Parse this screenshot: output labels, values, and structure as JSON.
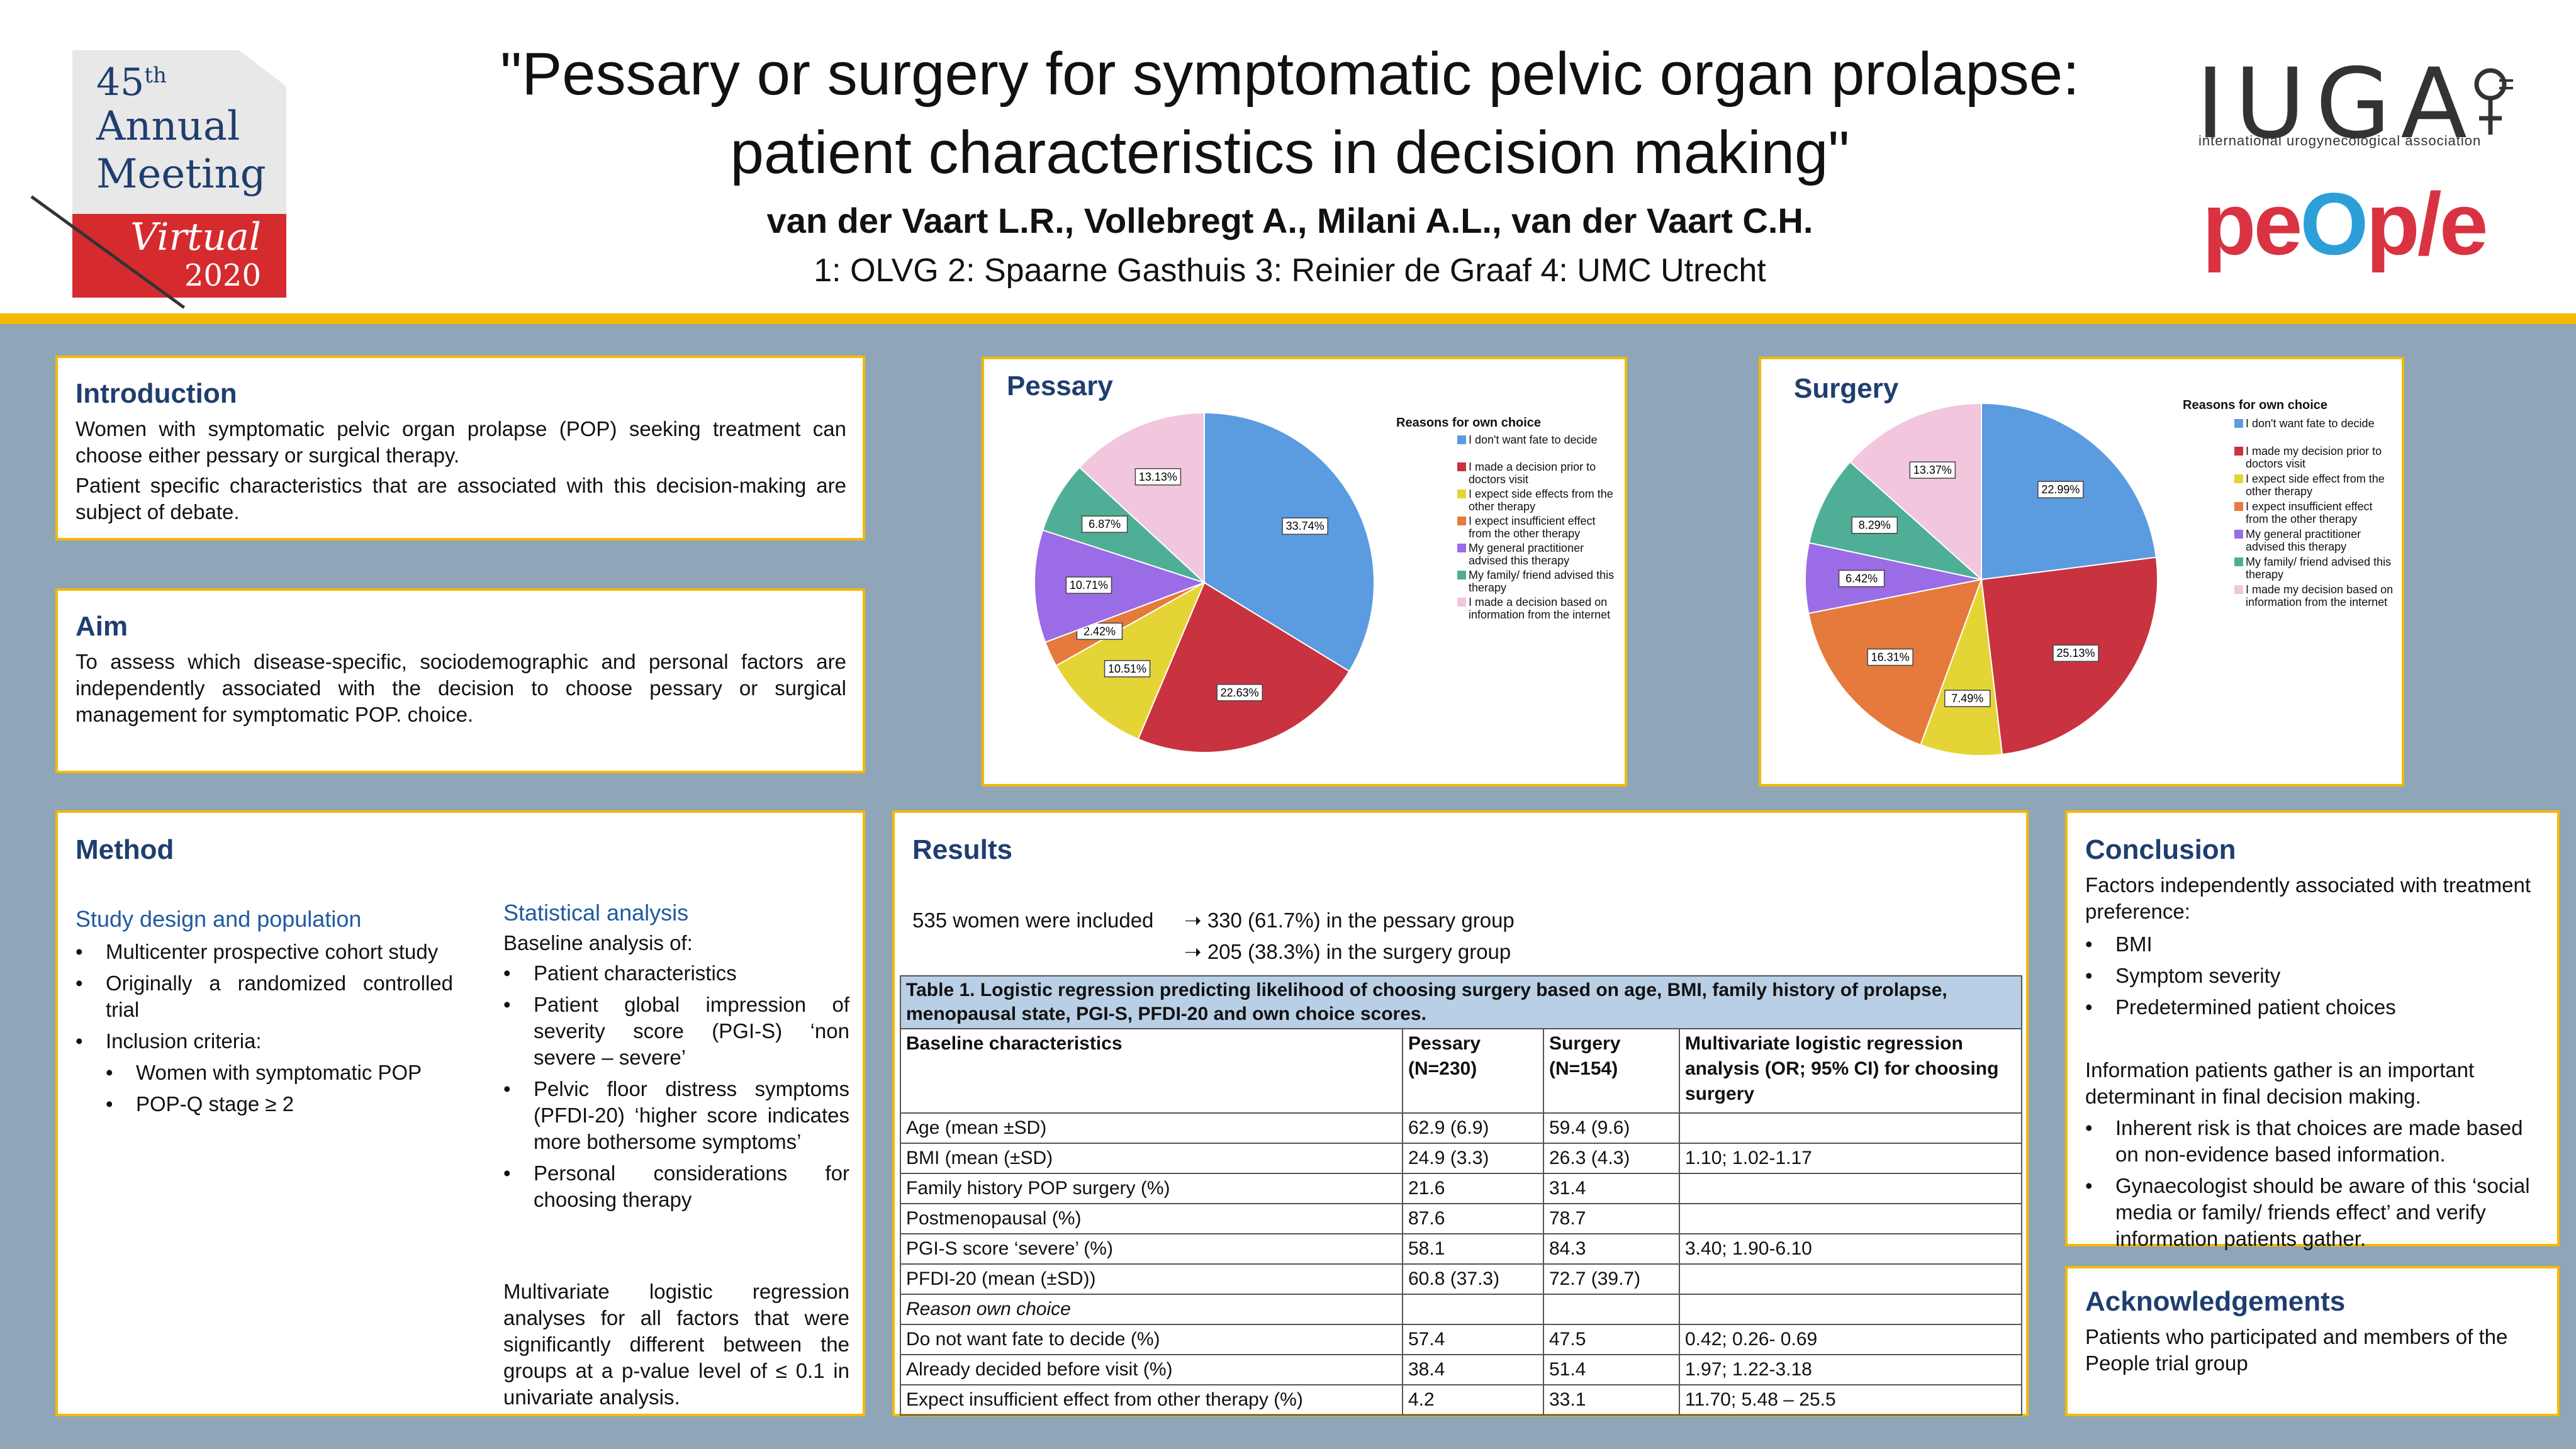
{
  "badge": {
    "number": "45",
    "suffix": "th",
    "line1": "Annual",
    "line2": "Meeting",
    "virtual": "Virtual",
    "year": "2020"
  },
  "header": {
    "title_line1": "\"Pessary or surgery for symptomatic pelvic organ prolapse:",
    "title_line2": "patient characteristics in decision making\"",
    "authors": "van der Vaart L.R., Vollebregt A., Milani A.L., van der Vaart C.H.",
    "affiliations": "1: OLVG 2: Spaarne Gasthuis 3: Reinier de Graaf 4: UMC Utrecht"
  },
  "logos": {
    "iuga": "IUGA",
    "iuga_sub": "international urogynecological association",
    "people_pre": "pe",
    "people_o": "O",
    "people_post": "p/e"
  },
  "introduction": {
    "heading": "Introduction",
    "p1": "Women with symptomatic pelvic organ prolapse (POP) seeking treatment can choose either pessary or surgical therapy.",
    "p2": "Patient specific characteristics that are associated with this decision-making are subject of debate."
  },
  "aim": {
    "heading": "Aim",
    "text": "To assess which disease-specific, sociodemographic and personal factors are independently associated with the decision to choose pessary or surgical management for symptomatic POP. choice."
  },
  "method": {
    "heading": "Method",
    "study_heading": "Study design and population",
    "study_items": [
      "Multicenter prospective cohort study",
      "Originally a randomized controlled trial",
      "Inclusion criteria:"
    ],
    "inclusion_items": [
      "Women with symptomatic POP",
      "POP-Q stage ≥ 2"
    ],
    "stat_heading": "Statistical analysis",
    "stat_intro": "Baseline analysis of:",
    "stat_items": [
      "Patient characteristics",
      "Patient global impression of severity score (PGI-S) ‘non severe – severe’",
      "Pelvic floor distress symptoms (PFDI-20) ‘higher score indicates more bothersome symptoms’",
      "Personal considerations for choosing therapy"
    ],
    "stat_text": "Multivariate logistic regression analyses for all factors that were significantly different between the groups at a p-value level of ≤ 0.1 in univariate analysis."
  },
  "chart_data": [
    {
      "type": "pie",
      "title": "Pessary",
      "legend_title": "Reasons for own choice",
      "labels": [
        "I don't want fate to decide",
        "I made a decision prior to doctors visit",
        "I expect side effects from the other therapy",
        "I expect insufficient effect from the other therapy",
        "My general practitioner advised this therapy",
        "My family/ friend advised this therapy",
        "I made a decision based on information from the internet"
      ],
      "values": [
        33.74,
        22.63,
        10.51,
        2.42,
        10.71,
        6.87,
        13.13
      ],
      "value_labels": [
        "33.74%",
        "22.63%",
        "10.51%",
        "2.42%",
        "10.71%",
        "6.87%",
        "13.13%"
      ],
      "colors": [
        "#5b9be0",
        "#c8333f",
        "#e5d435",
        "#e57a3c",
        "#9a6ce6",
        "#4faf96",
        "#f2c6dd"
      ],
      "legend": "right"
    },
    {
      "type": "pie",
      "title": "Surgery",
      "legend_title": "Reasons for own choice",
      "labels": [
        "I don't want fate to decide",
        "I made my decision prior to doctors visit",
        "I expect side effect from the other therapy",
        "I expect insufficient effect from the other therapy",
        "My general practitioner advised this therapy",
        "My family/ friend advised this therapy",
        "I made my decision based on information from the internet"
      ],
      "values": [
        22.99,
        25.13,
        7.49,
        16.31,
        6.42,
        8.29,
        13.37
      ],
      "value_labels": [
        "22.99%",
        "25.13%",
        "7.49%",
        "16.31%",
        "6.42%",
        "8.29%",
        "13.37%"
      ],
      "colors": [
        "#5b9be0",
        "#c8333f",
        "#e5d435",
        "#e57a3c",
        "#9a6ce6",
        "#4faf96",
        "#f2c6dd"
      ],
      "legend": "right"
    }
  ],
  "results": {
    "heading": "Results",
    "included": "535 women were included",
    "group1": "➝ 330 (61.7%) in the pessary group",
    "group2": "➝ 205 (38.3%) in the surgery group",
    "table_caption": "Table 1. Logistic regression predicting likelihood of choosing surgery based on age, BMI, family history of prolapse, menopausal state, PGI-S, PFDI-20 and own choice scores.",
    "columns": [
      "Baseline characteristics",
      "Pessary (N=230)",
      "Surgery (N=154)",
      "Multivariate logistic regression analysis (OR; 95% CI) for choosing surgery"
    ],
    "rows": [
      [
        "Age (mean ±SD)",
        "62.9 (6.9)",
        "59.4 (9.6)",
        ""
      ],
      [
        "BMI (mean (±SD)",
        "24.9 (3.3)",
        "26.3 (4.3)",
        "1.10; 1.02-1.17"
      ],
      [
        "Family history POP surgery (%)",
        "21.6",
        "31.4",
        ""
      ],
      [
        "Postmenopausal (%)",
        "87.6",
        "78.7",
        ""
      ],
      [
        "PGI-S score ‘severe’ (%)",
        "58.1",
        "84.3",
        "3.40; 1.90-6.10"
      ],
      [
        "PFDI-20 (mean (±SD))",
        "60.8 (37.3)",
        "72.7 (39.7)",
        ""
      ],
      [
        "Reason own choice",
        "",
        "",
        ""
      ],
      [
        "Do not want fate to decide (%)",
        "57.4",
        "47.5",
        "0.42; 0.26- 0.69"
      ],
      [
        "Already decided before visit (%)",
        "38.4",
        "51.4",
        "1.97; 1.22-3.18"
      ],
      [
        "Expect insufficient effect from other therapy (%)",
        "4.2",
        "33.1",
        "11.70; 5.48 – 25.5"
      ]
    ]
  },
  "conclusion": {
    "heading": "Conclusion",
    "intro": "Factors independently associated with treatment preference:",
    "items": [
      "BMI",
      "Symptom severity",
      "Predetermined patient choices"
    ],
    "p2": "Information patients gather is an important determinant in final decision making.",
    "items2": [
      "Inherent risk is that choices are made based on non-evidence based information.",
      "Gynaecologist should be aware of this ‘social media or family/ friends effect’ and verify information patients gather."
    ]
  },
  "acknowledgements": {
    "heading": "Acknowledgements",
    "text": "Patients who participated and members of the People trial group"
  }
}
